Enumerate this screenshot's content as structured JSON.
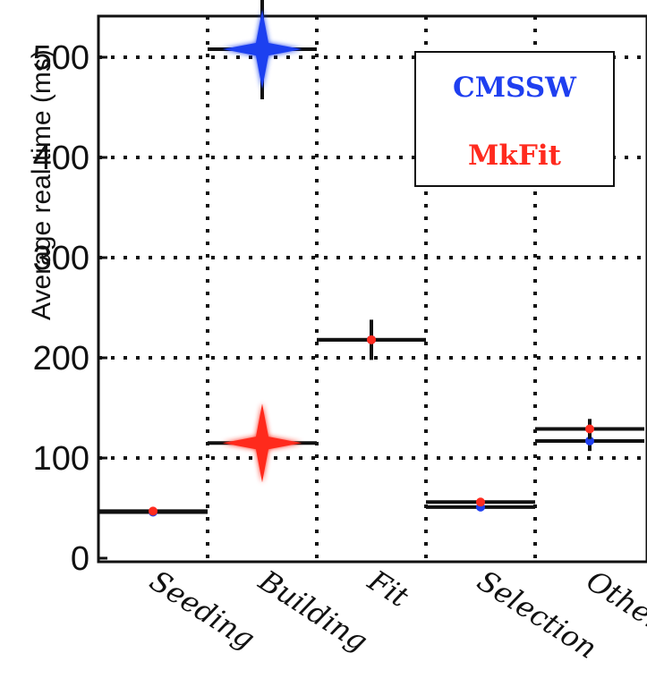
{
  "chart_data": {
    "type": "scatter",
    "title": "",
    "ylabel": "Average real time (ms)",
    "xlabel": "",
    "categories": [
      "Seeding",
      "Building",
      "Fit",
      "Selection",
      "Other"
    ],
    "y_ticks": [
      "0",
      "100",
      "200",
      "300",
      "400",
      "500"
    ],
    "ylim": [
      0,
      540
    ],
    "grid": true,
    "legend_position": "top-right",
    "series": [
      {
        "name": "CMSSW",
        "color": "#1f3ff0",
        "values": [
          46,
          508,
          218,
          51,
          117
        ],
        "errors": [
          2,
          50,
          20,
          4,
          10
        ],
        "marker_highlight": [
          false,
          true,
          false,
          false,
          false
        ]
      },
      {
        "name": "MkFit",
        "color": "#ff2b1f",
        "values": [
          47,
          115,
          218,
          56,
          129
        ],
        "errors": [
          2,
          10,
          20,
          4,
          10
        ],
        "marker_highlight": [
          false,
          true,
          false,
          false,
          false
        ]
      }
    ]
  }
}
